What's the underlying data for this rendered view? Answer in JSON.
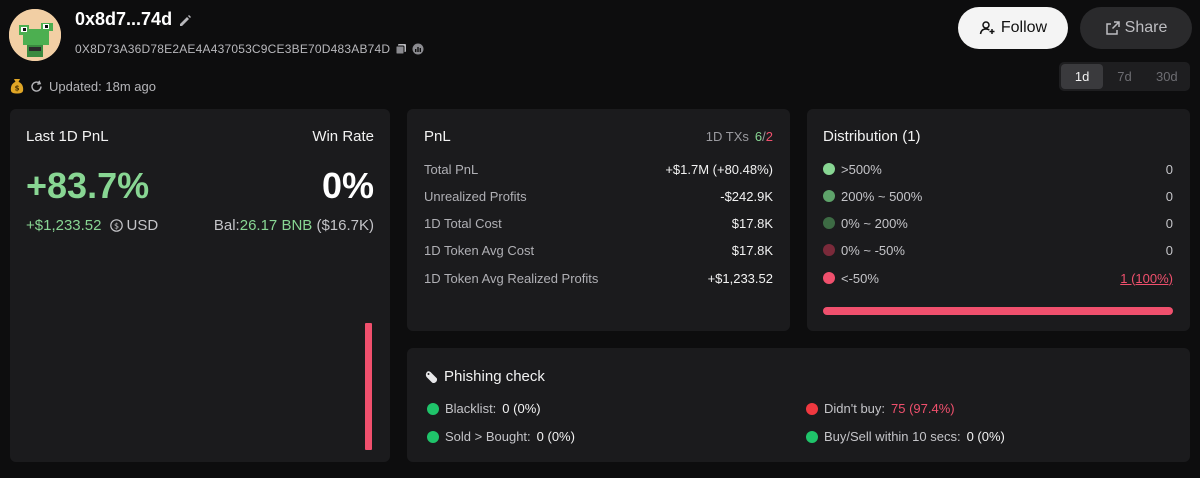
{
  "profile": {
    "short_address": "0x8d7...74d",
    "full_address": "0X8D73A36D78E2AE4A437053C9CE3BE70D483AB74D"
  },
  "header": {
    "follow_label": "Follow",
    "share_label": "Share",
    "updated_text": "Updated: 18m ago"
  },
  "periods": [
    {
      "label": "1d",
      "active": true
    },
    {
      "label": "7d",
      "active": false
    },
    {
      "label": "30d",
      "active": false
    }
  ],
  "summary": {
    "pnl_label": "Last 1D PnL",
    "winrate_label": "Win Rate",
    "pnl_percent": "+83.7%",
    "win_rate": "0%",
    "pnl_usd": "+$1,233.52",
    "usd_unit": "USD",
    "bal_prefix": "Bal:",
    "bal_value": "26.17 BNB",
    "bal_usd": "($16.7K)"
  },
  "pnl": {
    "title": "PnL",
    "txs_label": "1D TXs",
    "txs_buy": "6",
    "txs_sep": "/",
    "txs_sell": "2",
    "rows": [
      {
        "label": "Total PnL",
        "value": "+$1.7M (+80.48%)",
        "tone": "g"
      },
      {
        "label": "Unrealized Profits",
        "value": "-$242.9K",
        "tone": "r"
      },
      {
        "label": "1D Total Cost",
        "value": "$17.8K",
        "tone": ""
      },
      {
        "label": "1D Token Avg Cost",
        "value": "$17.8K",
        "tone": ""
      },
      {
        "label": "1D Token Avg Realized Profits",
        "value": "+$1,233.52",
        "tone": "g"
      }
    ]
  },
  "distribution": {
    "title": "Distribution (1)",
    "rows": [
      {
        "label": ">500%",
        "value": "0",
        "color": "#88d693"
      },
      {
        "label": "200% ~ 500%",
        "value": "0",
        "color": "#5ea36a"
      },
      {
        "label": "0% ~ 200%",
        "value": "0",
        "color": "#3d6b44"
      },
      {
        "label": "0% ~ -50%",
        "value": "0",
        "color": "#7a2a3a"
      },
      {
        "label": "<-50%",
        "value": "1 (100%)",
        "color": "#f0506d"
      }
    ],
    "loss_fraction": 1.0
  },
  "phishing": {
    "title": "Phishing check",
    "items": [
      {
        "label": "Blacklist:",
        "value": "0 (0%)",
        "dot": "#1fc46a",
        "value_tone": ""
      },
      {
        "label": "Sold > Bought:",
        "value": "0 (0%)",
        "dot": "#1fc46a",
        "value_tone": ""
      },
      {
        "label": "Didn't buy:",
        "value": "75 (97.4%)",
        "dot": "#f0383f",
        "value_tone": "red"
      },
      {
        "label": "Buy/Sell within 10 secs:",
        "value": "0 (0%)",
        "dot": "#1fc46a",
        "value_tone": ""
      }
    ]
  },
  "colors": {
    "profit_green": "#88d693",
    "loss_red": "#f0506d",
    "bg": "#0d0d0e",
    "card": "#1b1b1d"
  }
}
